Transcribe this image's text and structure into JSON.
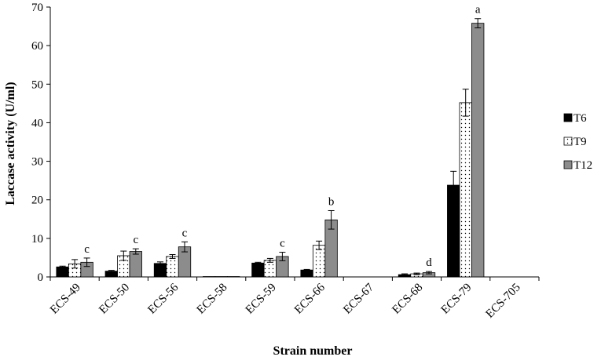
{
  "chart_data": {
    "type": "bar",
    "xlabel": "Strain number",
    "ylabel": "Laccase activity (U/ml)",
    "ylim": [
      0,
      70
    ],
    "yticks": [
      0,
      10,
      20,
      30,
      40,
      50,
      60,
      70
    ],
    "grid": false,
    "legend_position": "right",
    "categories": [
      "ECS-49",
      "ECS-50",
      "ECS-56",
      "ECS-58",
      "ECS-59",
      "ECS-66",
      "ECS-67",
      "ECS-68",
      "ECS-79",
      "ECS-705"
    ],
    "series": [
      {
        "name": "T6",
        "color": "#000000",
        "pattern": "solid",
        "values": [
          2.6,
          1.5,
          3.5,
          0.1,
          3.6,
          1.8,
          0,
          0.6,
          23.8,
          0
        ],
        "errors": [
          0.2,
          0.2,
          0.4,
          0.05,
          0.2,
          0.15,
          0,
          0.2,
          3.6,
          0
        ]
      },
      {
        "name": "T9",
        "color": "#ffffff",
        "pattern": "dotted",
        "values": [
          3.4,
          5.5,
          5.3,
          0.1,
          4.3,
          8.2,
          0,
          0.8,
          45.2,
          0
        ],
        "errors": [
          1.1,
          1.2,
          0.5,
          0.05,
          0.5,
          1.1,
          0,
          0.2,
          3.5,
          0
        ]
      },
      {
        "name": "T12",
        "color": "#8c8c8c",
        "pattern": "solid",
        "values": [
          3.8,
          6.6,
          7.8,
          0.1,
          5.3,
          14.8,
          0,
          1.1,
          65.8,
          0
        ],
        "errors": [
          1.1,
          0.7,
          1.3,
          0.05,
          1.1,
          2.4,
          0,
          0.3,
          1.2,
          0
        ]
      }
    ],
    "annotations": [
      {
        "category": "ECS-49",
        "series": "T12",
        "text": "c"
      },
      {
        "category": "ECS-50",
        "series": "T12",
        "text": "c"
      },
      {
        "category": "ECS-56",
        "series": "T12",
        "text": "c"
      },
      {
        "category": "ECS-59",
        "series": "T12",
        "text": "c"
      },
      {
        "category": "ECS-66",
        "series": "T12",
        "text": "b"
      },
      {
        "category": "ECS-68",
        "series": "T12",
        "text": "d"
      },
      {
        "category": "ECS-79",
        "series": "T12",
        "text": "a"
      }
    ]
  }
}
